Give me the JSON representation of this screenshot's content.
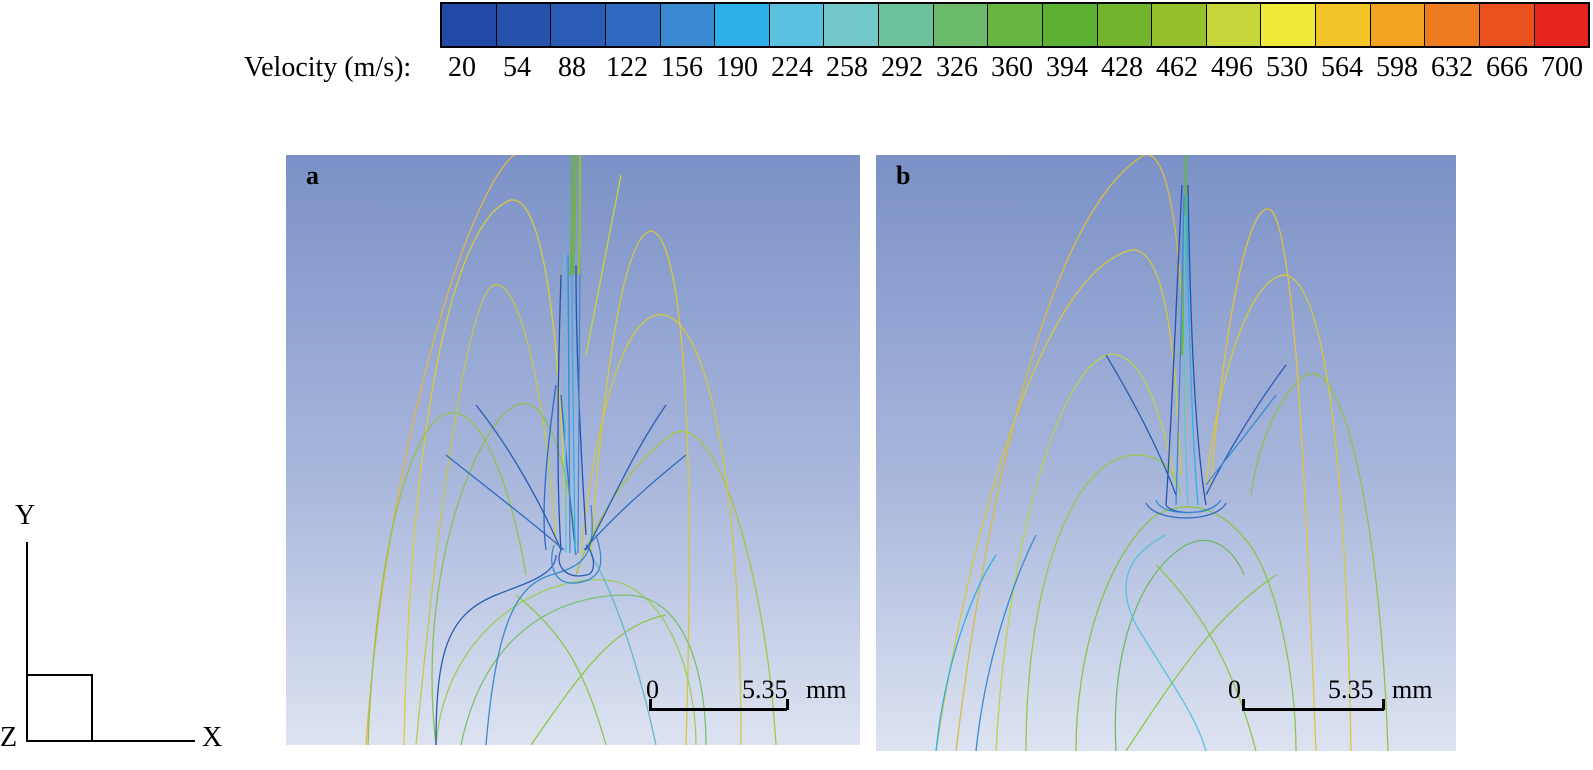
{
  "colorbar": {
    "title": "Velocity (m/s):",
    "ticks": [
      "20",
      "54",
      "88",
      "122",
      "156",
      "190",
      "224",
      "258",
      "292",
      "326",
      "360",
      "394",
      "428",
      "462",
      "496",
      "530",
      "564",
      "598",
      "632",
      "666",
      "700"
    ],
    "colors": [
      "#2349a6",
      "#2752ab",
      "#2a5cb5",
      "#2e6bc0",
      "#3a8ad2",
      "#2db0e8",
      "#5bc1e0",
      "#72c8c8",
      "#6cc29a",
      "#6bba6a",
      "#65b53f",
      "#5cb032",
      "#72b52c",
      "#94c12c",
      "#c6d63a",
      "#efe93a",
      "#f3c428",
      "#f3a322",
      "#ee7b1f",
      "#e9521f",
      "#e3241f"
    ]
  },
  "panels": [
    {
      "label": "a",
      "scale": {
        "start": "0",
        "end": "5.35",
        "unit": "mm"
      }
    },
    {
      "label": "b",
      "scale": {
        "start": "0",
        "end": "5.35",
        "unit": "mm"
      }
    }
  ],
  "axes": {
    "y": "Y",
    "x": "X",
    "z": "Z"
  }
}
